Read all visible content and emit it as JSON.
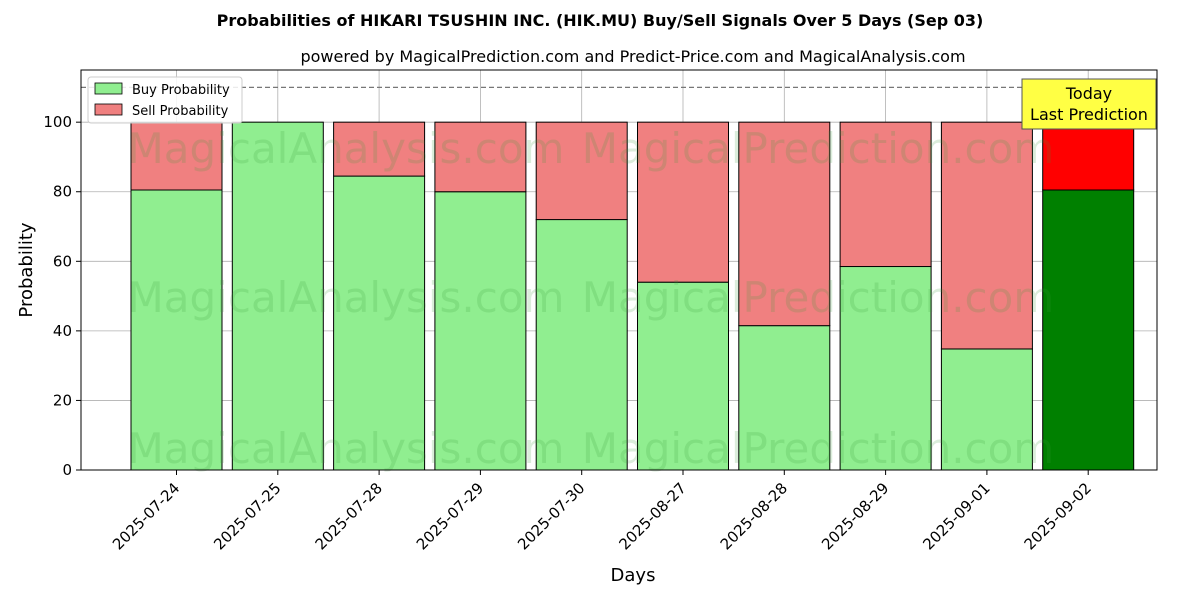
{
  "chart_data": {
    "type": "bar",
    "stacked": true,
    "title": "Probabilities of HIKARI TSUSHIN INC. (HIK.MU) Buy/Sell Signals Over 5 Days (Sep 03)",
    "subtitle": "powered by MagicalPrediction.com and Predict-Price.com and MagicalAnalysis.com",
    "xlabel": "Days",
    "ylabel": "Probability",
    "ylim": [
      0,
      115
    ],
    "yticks": [
      0,
      20,
      40,
      60,
      80,
      100
    ],
    "grid": true,
    "legend_position": "top-left",
    "reference_line": 110,
    "categories": [
      "2025-07-24",
      "2025-07-25",
      "2025-07-28",
      "2025-07-29",
      "2025-07-30",
      "2025-08-27",
      "2025-08-28",
      "2025-08-29",
      "2025-09-01",
      "2025-09-02"
    ],
    "series": [
      {
        "name": "Buy Probability",
        "values": [
          80.5,
          100.0,
          84.5,
          80.0,
          72.0,
          54.0,
          41.5,
          58.5,
          34.8,
          80.5
        ],
        "color": "#90ee90",
        "highlight_color": "#008000"
      },
      {
        "name": "Sell Probability",
        "values": [
          19.5,
          0.0,
          15.5,
          20.0,
          28.0,
          46.0,
          58.5,
          41.5,
          65.2,
          19.5
        ],
        "color": "#f08080",
        "highlight_color": "#ff0000"
      }
    ],
    "highlight_index": 9,
    "annotation": {
      "line1": "Today",
      "line2": "Last Prediction",
      "color": "#ffff44"
    },
    "watermarks": [
      "MagicalAnalysis.com",
      "MagicalPrediction.com"
    ]
  }
}
